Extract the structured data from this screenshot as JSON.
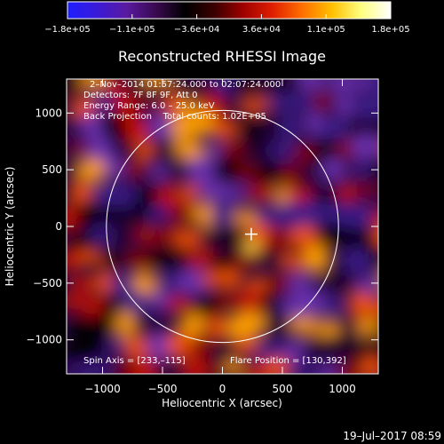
{
  "chart_data": {
    "type": "heatmap",
    "title": "Reconstructed RHESSI Image",
    "xlabel": "Heliocentric X (arcsec)",
    "ylabel": "Heliocentric Y (arcsec)",
    "xlim": [
      -1300,
      1300
    ],
    "ylim": [
      -1300,
      1300
    ],
    "xticks": [
      -1000,
      -500,
      0,
      500,
      1000
    ],
    "xtick_labels": [
      "−1000",
      "−500",
      "0",
      "500",
      "1000"
    ],
    "yticks": [
      1000,
      500,
      0,
      -500,
      -1000
    ],
    "ytick_labels": [
      "1000",
      "500",
      "0",
      "−500",
      "−1000"
    ],
    "colorbar": {
      "ticks": [
        "−1.8e+05",
        "−1.1e+05",
        "−3.6e+04",
        "3.6e+04",
        "1.1e+05",
        "1.8e+05"
      ],
      "min": -180000,
      "max": 180000,
      "colors": [
        "#1e1eff",
        "#3a1ad8",
        "#5a1aa0",
        "#3a0a50",
        "#000000",
        "#3a0000",
        "#a00000",
        "#e02000",
        "#ff7000",
        "#ffc000",
        "#ffff80",
        "#ffffff"
      ]
    },
    "solar_limb": {
      "center": [
        0,
        0
      ],
      "radius_arcsec": 968
    },
    "flare_marker": {
      "x": 233,
      "y": -115
    }
  },
  "info_lines": [
    "2–Nov–2014 01:57:24.000 to 02:07:24.000",
    "Detectors: 7F 8F 9F, Att 0",
    "Energy Range: 6.0 – 25.0 keV",
    "Back Projection    Total counts: 1.02E+05"
  ],
  "spin_axis": "Spin Axis = [233,–115]",
  "flare_position": "Flare Position = [130,392]",
  "timestamp": "19–Jul–2017 08:59"
}
